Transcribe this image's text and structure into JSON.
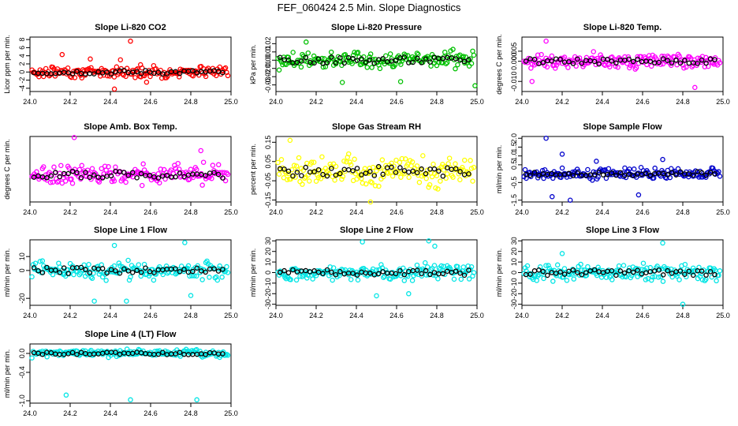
{
  "page": {
    "title": "FEF_060424  2.5 Min. Slope Diagnostics"
  },
  "colors": {
    "axis": "#000000",
    "black_points": "#000000"
  },
  "chart_data": [
    {
      "type": "scatter",
      "title": "Slope Li-820 CO2",
      "xlabel": "",
      "ylabel": "Licor ppm per min.",
      "xlim": [
        24.0,
        25.0
      ],
      "ylim": [
        -4.8,
        8.6
      ],
      "xticks": [
        "24.0",
        "24.2",
        "24.4",
        "24.6",
        "24.8",
        "25.0"
      ],
      "yticks": [
        "-4",
        "-2",
        "0",
        "2",
        "4",
        "6",
        "8"
      ],
      "color": "#ff0000",
      "spread": 1.1,
      "outliers": [
        [
          24.16,
          4.3
        ],
        [
          24.3,
          3.2
        ],
        [
          24.42,
          -4.2
        ],
        [
          24.45,
          3.0
        ],
        [
          24.5,
          7.6
        ],
        [
          24.55,
          1.8
        ],
        [
          24.58,
          -2.5
        ]
      ]
    },
    {
      "type": "scatter",
      "title": "Slope Li-820 Pressure",
      "xlabel": "",
      "ylabel": "kPa per min.",
      "xlim": [
        24.0,
        25.0
      ],
      "ylim": [
        -0.038,
        0.028
      ],
      "xticks": [
        "24.0",
        "24.2",
        "24.4",
        "24.6",
        "24.8",
        "25.0"
      ],
      "yticks": [
        "-0.03",
        "-0.02",
        "-0.01",
        "0.00",
        "0.01",
        "0.02"
      ],
      "color": "#00c000",
      "spread": 0.009,
      "outliers": [
        [
          24.33,
          -0.027
        ],
        [
          24.62,
          -0.026
        ],
        [
          24.99,
          -0.031
        ],
        [
          24.15,
          0.022
        ]
      ]
    },
    {
      "type": "scatter",
      "title": "Slope Li-820 Temp.",
      "xlabel": "",
      "ylabel": "degrees C per min.",
      "xlim": [
        24.0,
        25.0
      ],
      "ylim": [
        -0.015,
        0.012
      ],
      "xticks": [
        "24.0",
        "24.2",
        "24.4",
        "24.6",
        "24.8",
        "25.0"
      ],
      "yticks": [
        "-0.010",
        "0.000",
        "0.005"
      ],
      "color": "#ff00ff",
      "spread": 0.003,
      "outliers": [
        [
          24.12,
          0.01
        ],
        [
          24.05,
          -0.01
        ],
        [
          24.86,
          -0.013
        ]
      ]
    },
    {
      "type": "scatter",
      "title": "Slope Amb. Box Temp.",
      "xlabel": "",
      "ylabel": "degrees C per min.",
      "xlim": [
        24.0,
        25.0
      ],
      "ylim": [
        -0.25,
        0.35
      ],
      "xticks": [
        "24.0",
        "24.2",
        "24.4",
        "24.6",
        "24.8",
        "25.0"
      ],
      "yticks": [],
      "color": "#ff00ff",
      "spread": 0.07,
      "outliers": [
        [
          24.22,
          0.34
        ],
        [
          24.85,
          0.22
        ]
      ]
    },
    {
      "type": "scatter",
      "title": "Slope Gas Stream RH",
      "xlabel": "",
      "ylabel": "percent per min.",
      "xlim": [
        24.0,
        25.0
      ],
      "ylim": [
        -0.16,
        0.18
      ],
      "xticks": [
        "24.0",
        "24.2",
        "24.4",
        "24.6",
        "24.8",
        "25.0"
      ],
      "yticks": [
        "-0.15",
        "-0.05",
        "0.05",
        "0.15"
      ],
      "color": "#ffff00",
      "spread": 0.06,
      "outliers": [
        [
          24.07,
          0.16
        ],
        [
          24.47,
          -0.16
        ]
      ]
    },
    {
      "type": "scatter",
      "title": "Slope Sample Flow",
      "xlabel": "",
      "ylabel": "ml/min per min.",
      "xlim": [
        24.0,
        25.0
      ],
      "ylim": [
        -1.6,
        2.1
      ],
      "xticks": [
        "24.0",
        "24.2",
        "24.4",
        "24.6",
        "24.8",
        "25.0"
      ],
      "yticks": [
        "-1.5",
        "-0.5",
        "0.5",
        "1.0",
        "1.5",
        "2.0"
      ],
      "color": "#0000cc",
      "spread": 0.25,
      "outliers": [
        [
          24.12,
          2.0
        ],
        [
          24.15,
          -1.3
        ],
        [
          24.2,
          1.1
        ],
        [
          24.24,
          -1.5
        ],
        [
          24.37,
          0.7
        ],
        [
          24.58,
          -1.2
        ],
        [
          24.7,
          0.8
        ]
      ]
    },
    {
      "type": "scatter",
      "title": "Slope Line 1 Flow",
      "xlabel": "",
      "ylabel": "ml/min per min.",
      "xlim": [
        24.0,
        25.0
      ],
      "ylim": [
        -25,
        22
      ],
      "xticks": [
        "24.0",
        "24.2",
        "24.4",
        "24.6",
        "24.8",
        "25.0"
      ],
      "yticks": [
        "-20",
        "0",
        "10"
      ],
      "color": "#00e5e5",
      "spread": 5,
      "outliers": [
        [
          24.32,
          -22
        ],
        [
          24.48,
          -22
        ],
        [
          24.77,
          20
        ],
        [
          24.8,
          -18
        ],
        [
          24.42,
          18
        ]
      ]
    },
    {
      "type": "scatter",
      "title": "Slope Line 2 Flow",
      "xlabel": "",
      "ylabel": "ml/min per min.",
      "xlim": [
        24.0,
        25.0
      ],
      "ylim": [
        -31,
        31
      ],
      "xticks": [
        "24.0",
        "24.2",
        "24.4",
        "24.6",
        "24.8",
        "25.0"
      ],
      "yticks": [
        "-30",
        "-20",
        "-10",
        "0",
        "10",
        "20",
        "30"
      ],
      "color": "#00e5e5",
      "spread": 6,
      "outliers": [
        [
          24.43,
          29
        ],
        [
          24.76,
          30
        ],
        [
          24.79,
          25
        ],
        [
          24.5,
          -22
        ],
        [
          24.66,
          -20
        ]
      ]
    },
    {
      "type": "scatter",
      "title": "Slope Line 3 Flow",
      "xlabel": "",
      "ylabel": "ml/min per min.",
      "xlim": [
        24.0,
        25.0
      ],
      "ylim": [
        -31,
        31
      ],
      "xticks": [
        "24.0",
        "24.2",
        "24.4",
        "24.6",
        "24.8",
        "25.0"
      ],
      "yticks": [
        "-30",
        "-20",
        "-10",
        "0",
        "10",
        "20",
        "30"
      ],
      "color": "#00e5e5",
      "spread": 6,
      "outliers": [
        [
          24.7,
          28
        ],
        [
          24.8,
          -30
        ],
        [
          24.2,
          18
        ]
      ]
    },
    {
      "type": "scatter",
      "title": "Slope Line 4 (LT) Flow",
      "xlabel": "",
      "ylabel": "ml/min per min.",
      "xlim": [
        24.0,
        25.0
      ],
      "ylim": [
        -1.05,
        0.2
      ],
      "xticks": [
        "24.0",
        "24.2",
        "24.4",
        "24.6",
        "24.8",
        "25.0"
      ],
      "yticks": [
        "-1.0",
        "-0.4",
        "0.0"
      ],
      "color": "#00e5e5",
      "spread": 0.06,
      "outliers": [
        [
          24.18,
          -0.88
        ],
        [
          24.5,
          -0.98
        ],
        [
          24.83,
          -0.98
        ]
      ]
    }
  ]
}
